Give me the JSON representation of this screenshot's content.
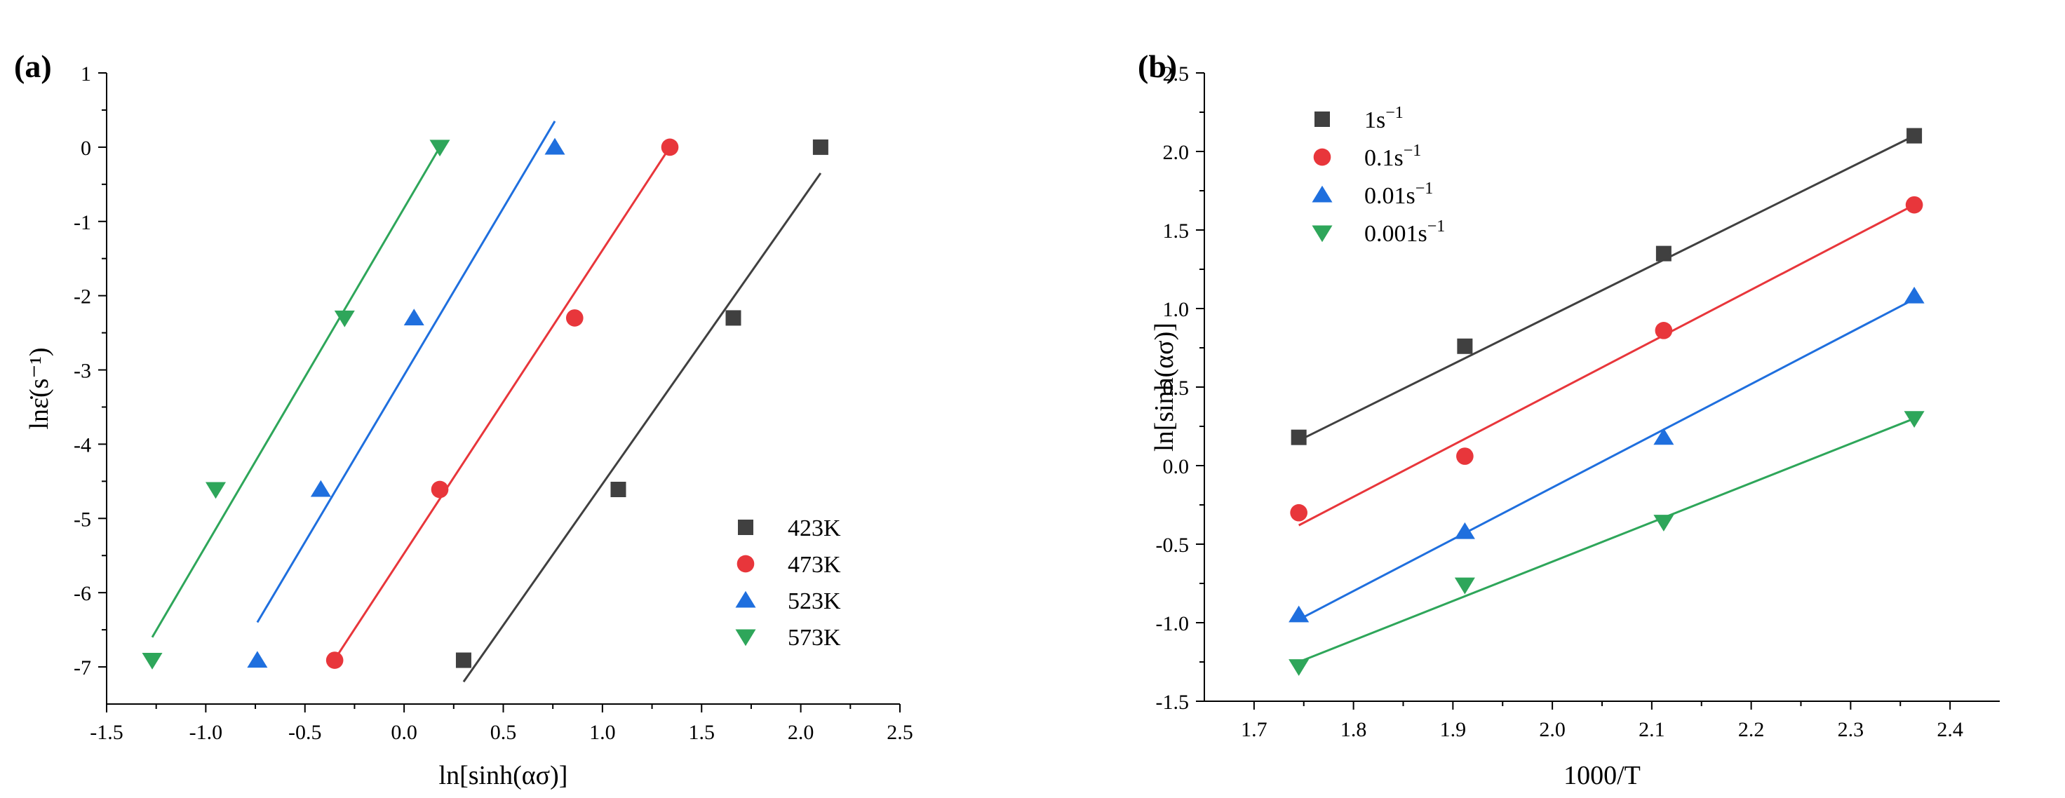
{
  "chart_data": [
    {
      "panel_label": "(a)",
      "type": "scatter",
      "xlabel": "ln[sinh(ασ)]",
      "ylabel": "lnε̇(s⁻¹)",
      "xlim": [
        -1.5,
        2.5
      ],
      "ylim": [
        -7.5,
        1
      ],
      "xticks": [
        "-1.5",
        "-1.0",
        "-0.5",
        "0.0",
        "0.5",
        "1.0",
        "1.5",
        "2.0",
        "2.5"
      ],
      "yticks": [
        "1",
        "0",
        "-1",
        "-2",
        "-3",
        "-4",
        "-5",
        "-6",
        "-7"
      ],
      "legend_position": "bottom-right",
      "series": [
        {
          "name": "423K",
          "color": "#404040",
          "marker": "square",
          "x": [
            0.3,
            1.08,
            1.66,
            2.1
          ],
          "y": [
            -6.91,
            -4.61,
            -2.3,
            0.0
          ],
          "fit": {
            "x": [
              0.3,
              2.1
            ],
            "y": [
              -7.2,
              -0.35
            ]
          }
        },
        {
          "name": "473K",
          "color": "#e8363b",
          "marker": "circle",
          "x": [
            -0.35,
            0.18,
            0.86,
            1.34
          ],
          "y": [
            -6.91,
            -4.61,
            -2.3,
            0.0
          ],
          "fit": {
            "x": [
              -0.35,
              1.34
            ],
            "y": [
              -6.9,
              0.0
            ]
          }
        },
        {
          "name": "523K",
          "color": "#1f6fde",
          "marker": "triangle-up",
          "x": [
            -0.74,
            -0.42,
            0.05,
            0.76
          ],
          "y": [
            -6.91,
            -4.61,
            -2.3,
            0.0
          ],
          "fit": {
            "x": [
              -0.74,
              0.76
            ],
            "y": [
              -6.4,
              0.35
            ]
          }
        },
        {
          "name": "573K",
          "color": "#2ea65a",
          "marker": "triangle-down",
          "x": [
            -1.27,
            -0.95,
            -0.3,
            0.18
          ],
          "y": [
            -6.91,
            -4.61,
            -2.3,
            0.0
          ],
          "fit": {
            "x": [
              -1.27,
              0.18
            ],
            "y": [
              -6.6,
              0.0
            ]
          }
        }
      ]
    },
    {
      "panel_label": "(b)",
      "type": "scatter",
      "xlabel": "1000/T",
      "ylabel": "ln[sinh(ασ)]",
      "xlim": [
        1.65,
        2.45
      ],
      "ylim": [
        -1.5,
        2.5
      ],
      "xticks": [
        "1.7",
        "1.8",
        "1.9",
        "2.0",
        "2.1",
        "2.2",
        "2.3",
        "2.4"
      ],
      "yticks": [
        "2.5",
        "2.0",
        "1.5",
        "1.0",
        "0.5",
        "0.0",
        "-0.5",
        "-1.0",
        "-1.5"
      ],
      "legend_position": "top-left",
      "series": [
        {
          "name": "1s",
          "unit_sup": "−1",
          "color": "#404040",
          "marker": "square",
          "x": [
            1.745,
            1.912,
            2.112,
            2.364
          ],
          "y": [
            0.18,
            0.76,
            1.35,
            2.1
          ],
          "fit": {
            "x": [
              1.745,
              2.364
            ],
            "y": [
              0.16,
              2.1
            ]
          }
        },
        {
          "name": "0.1s",
          "unit_sup": "−1",
          "color": "#e8363b",
          "marker": "circle",
          "x": [
            1.745,
            1.912,
            2.112,
            2.364
          ],
          "y": [
            -0.3,
            0.06,
            0.86,
            1.66
          ],
          "fit": {
            "x": [
              1.745,
              2.364
            ],
            "y": [
              -0.38,
              1.66
            ]
          }
        },
        {
          "name": "0.01s",
          "unit_sup": "−1",
          "color": "#1f6fde",
          "marker": "triangle-up",
          "x": [
            1.745,
            1.912,
            2.112,
            2.364
          ],
          "y": [
            -0.95,
            -0.42,
            0.18,
            1.08
          ],
          "fit": {
            "x": [
              1.745,
              2.364
            ],
            "y": [
              -0.98,
              1.06
            ]
          }
        },
        {
          "name": "0.001s",
          "unit_sup": "−1",
          "color": "#2ea65a",
          "marker": "triangle-down",
          "x": [
            1.745,
            1.912,
            2.112,
            2.364
          ],
          "y": [
            -1.28,
            -0.76,
            -0.36,
            0.3
          ],
          "fit": {
            "x": [
              1.745,
              2.364
            ],
            "y": [
              -1.25,
              0.3
            ]
          }
        }
      ]
    }
  ]
}
